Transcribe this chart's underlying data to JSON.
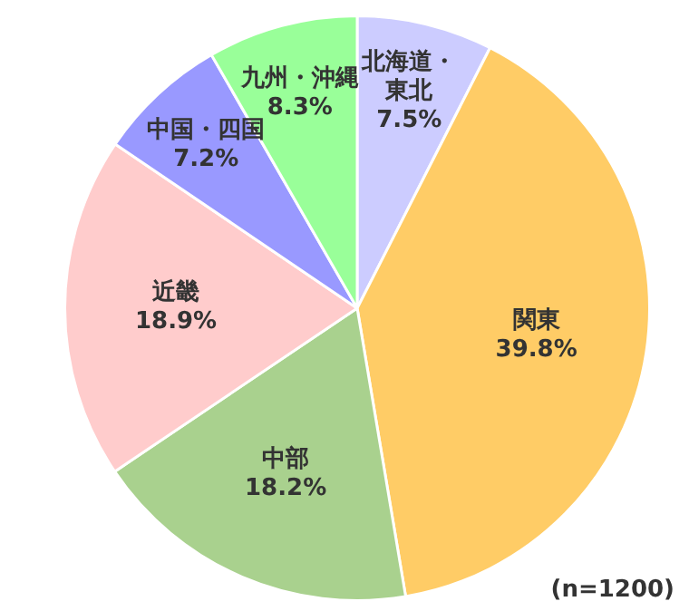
{
  "chart_data": {
    "type": "pie",
    "categories": [
      "北海道・東北",
      "関東",
      "中部",
      "近畿",
      "中国・四国",
      "九州・沖縄"
    ],
    "values": [
      7.5,
      39.8,
      18.2,
      18.9,
      7.2,
      8.3
    ],
    "colors": [
      "#ccccff",
      "#ffcc66",
      "#a9d18e",
      "#ffcccc",
      "#9999ff",
      "#99ff99"
    ],
    "value_labels": [
      "7.5%",
      "39.8%",
      "18.2%",
      "18.9%",
      "7.2%",
      "8.3%"
    ],
    "legend": false,
    "annotations": [
      "(n=1200)"
    ]
  }
}
